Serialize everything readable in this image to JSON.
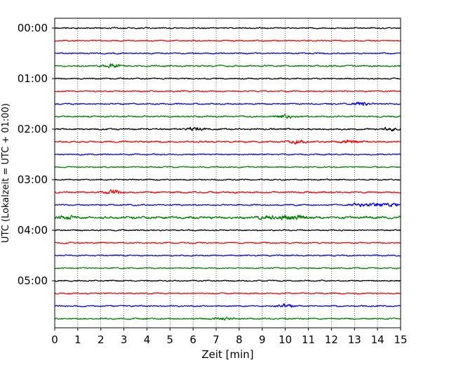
{
  "chart_data": {
    "type": "line",
    "title": "",
    "xlabel": "Zeit  [min]",
    "ylabel": "UTC (Lokalzeit = UTC + 01:00)",
    "xlim": [
      0,
      15
    ],
    "x_ticks": [
      "0",
      "1",
      "2",
      "3",
      "4",
      "5",
      "6",
      "7",
      "8",
      "9",
      "10",
      "11",
      "12",
      "13",
      "14",
      "15"
    ],
    "y_ticks": [
      "00:00",
      "01:00",
      "02:00",
      "03:00",
      "04:00",
      "05:00"
    ],
    "trace_interval_min": 15,
    "grid": "vertical-dotted",
    "trace_colors": [
      "#000000",
      "#ff0000",
      "#0000ff",
      "#008000"
    ],
    "series": [
      {
        "start": "00:00",
        "color": "#000000",
        "amplitude": 1.0,
        "bursts": []
      },
      {
        "start": "00:15",
        "color": "#ff0000",
        "amplitude": 1.0,
        "bursts": []
      },
      {
        "start": "00:30",
        "color": "#0000ff",
        "amplitude": 1.0,
        "bursts": []
      },
      {
        "start": "00:45",
        "color": "#008000",
        "amplitude": 1.2,
        "bursts": [
          2.5
        ]
      },
      {
        "start": "01:00",
        "color": "#000000",
        "amplitude": 1.0,
        "bursts": []
      },
      {
        "start": "01:15",
        "color": "#ff0000",
        "amplitude": 1.0,
        "bursts": []
      },
      {
        "start": "01:30",
        "color": "#0000ff",
        "amplitude": 1.0,
        "bursts": [
          13.3
        ]
      },
      {
        "start": "01:45",
        "color": "#008000",
        "amplitude": 1.2,
        "bursts": [
          10.0
        ]
      },
      {
        "start": "02:00",
        "color": "#000000",
        "amplitude": 1.2,
        "bursts": [
          6.1,
          14.5
        ]
      },
      {
        "start": "02:15",
        "color": "#ff0000",
        "amplitude": 1.2,
        "bursts": [
          10.5,
          12.8
        ]
      },
      {
        "start": "02:30",
        "color": "#0000ff",
        "amplitude": 1.0,
        "bursts": []
      },
      {
        "start": "02:45",
        "color": "#008000",
        "amplitude": 1.0,
        "bursts": []
      },
      {
        "start": "03:00",
        "color": "#000000",
        "amplitude": 1.0,
        "bursts": []
      },
      {
        "start": "03:15",
        "color": "#ff0000",
        "amplitude": 1.2,
        "bursts": [
          2.5
        ]
      },
      {
        "start": "03:30",
        "color": "#0000ff",
        "amplitude": 1.0,
        "bursts": [
          13.2,
          14.0,
          14.7
        ]
      },
      {
        "start": "03:45",
        "color": "#008000",
        "amplitude": 1.8,
        "bursts": [
          0.5,
          9.2,
          10.0,
          10.6
        ]
      },
      {
        "start": "04:00",
        "color": "#000000",
        "amplitude": 1.0,
        "bursts": []
      },
      {
        "start": "04:15",
        "color": "#ff0000",
        "amplitude": 1.0,
        "bursts": []
      },
      {
        "start": "04:30",
        "color": "#0000ff",
        "amplitude": 1.0,
        "bursts": []
      },
      {
        "start": "04:45",
        "color": "#008000",
        "amplitude": 1.0,
        "bursts": []
      },
      {
        "start": "05:00",
        "color": "#000000",
        "amplitude": 1.0,
        "bursts": []
      },
      {
        "start": "05:15",
        "color": "#ff0000",
        "amplitude": 1.0,
        "bursts": []
      },
      {
        "start": "05:30",
        "color": "#0000ff",
        "amplitude": 1.0,
        "bursts": [
          10.0
        ]
      },
      {
        "start": "05:45",
        "color": "#008000",
        "amplitude": 1.1,
        "bursts": [
          7.3
        ]
      }
    ]
  }
}
